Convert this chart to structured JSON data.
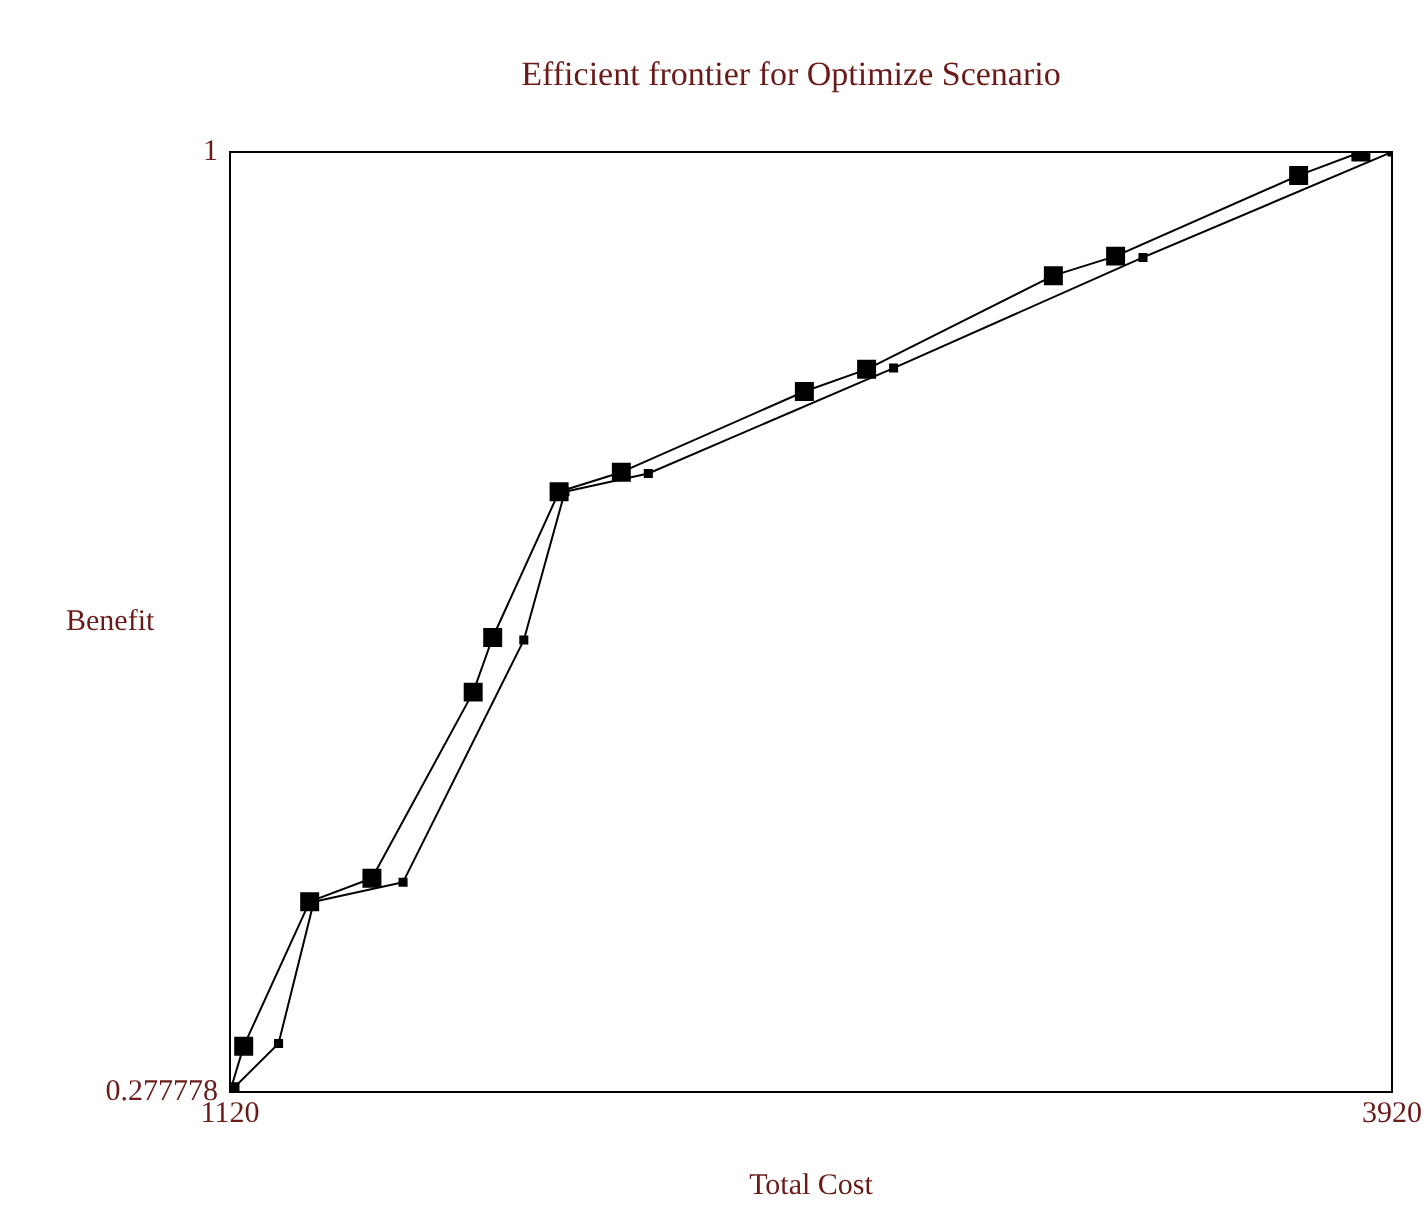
{
  "chart_data": {
    "type": "line",
    "title": "Efficient frontier for Optimize Scenario",
    "xlabel": "Total Cost",
    "ylabel": "Benefit",
    "xlim": [
      1120,
      3920
    ],
    "xticks": [
      1120,
      3920
    ],
    "ylim": [
      0.277778,
      1
    ],
    "yticks": [
      0.277778,
      1
    ],
    "legend": false,
    "marker": "square",
    "line_style": "solid",
    "series": [
      {
        "color": "#000000",
        "x": [
          1120,
          1153,
          1312,
          1462,
          1706,
          1753,
          1913,
          2063,
          2504,
          2654,
          3104,
          3254,
          3695,
          3845
        ],
        "values": [
          0.278,
          0.313,
          0.424,
          0.442,
          0.585,
          0.627,
          0.739,
          0.754,
          0.816,
          0.833,
          0.905,
          0.92,
          0.982,
          1.0
        ]
      },
      {
        "color": "#000000",
        "x": [
          1120,
          1237,
          1322,
          1537,
          1828,
          1927,
          2128,
          2719,
          3320,
          3920
        ],
        "values": [
          0.278,
          0.315,
          0.424,
          0.439,
          0.625,
          0.739,
          0.753,
          0.834,
          0.919,
          1.0
        ]
      }
    ]
  }
}
